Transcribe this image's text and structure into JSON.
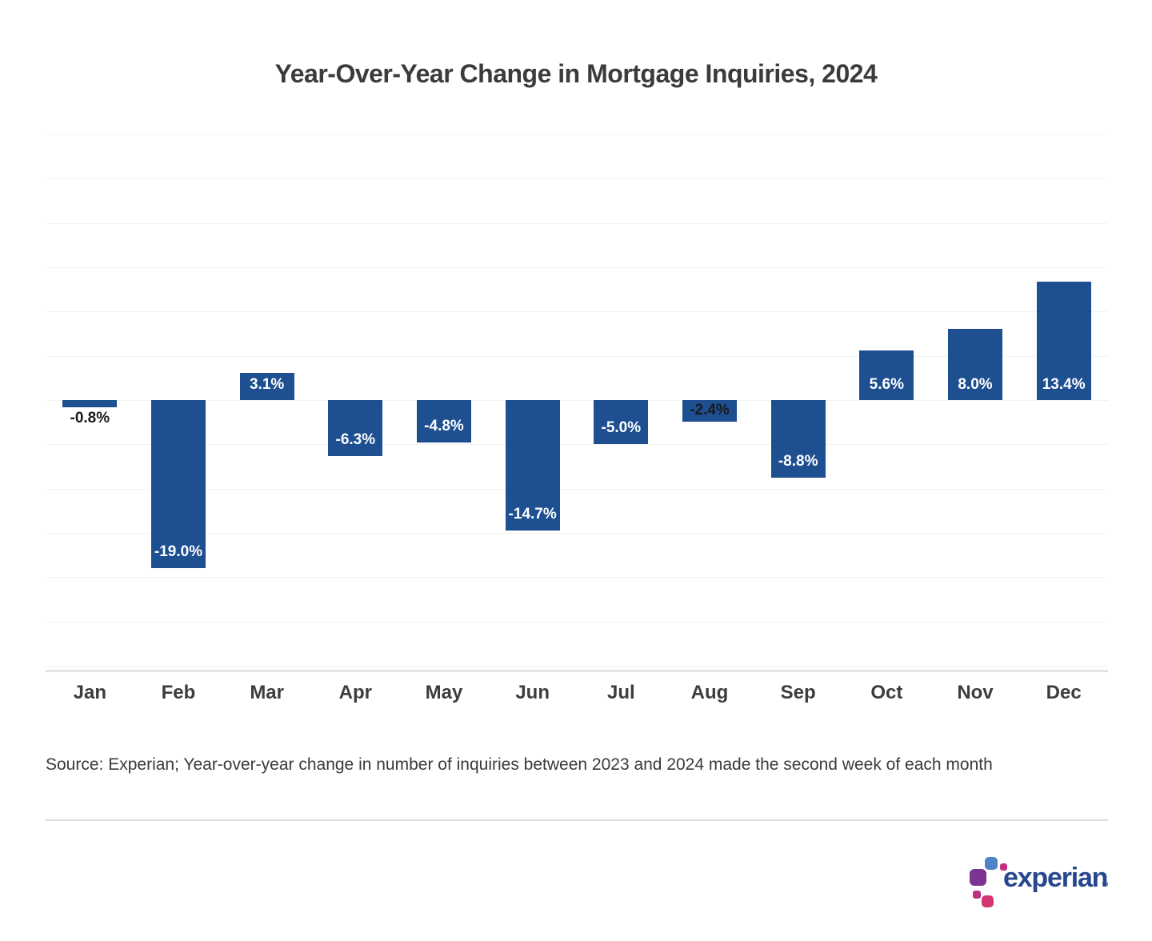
{
  "page": {
    "background": "#ffffff"
  },
  "source_note": "Source: Experian; Year-over-year change in number of inquiries between 2023 and 2024 made the second week of each month",
  "logo": {
    "text": "experian",
    "trademark": "™",
    "text_color": "#26478d",
    "squares": [
      {
        "name": "purple-square",
        "color": "#7a3590"
      },
      {
        "name": "blue-square",
        "color": "#4f83c8"
      },
      {
        "name": "magenta-small-square-1",
        "color": "#c13082"
      },
      {
        "name": "magenta-small-square-2",
        "color": "#bd2e7e"
      },
      {
        "name": "pink-square",
        "color": "#d23570"
      }
    ]
  },
  "chart_data": {
    "type": "bar",
    "title": "Year-Over-Year Change in Mortgage Inquiries, 2024",
    "xlabel": "",
    "ylabel": "",
    "categories": [
      "Jan",
      "Feb",
      "Mar",
      "Apr",
      "May",
      "Jun",
      "Jul",
      "Aug",
      "Sep",
      "Oct",
      "Nov",
      "Dec"
    ],
    "values": [
      -0.8,
      -19.0,
      3.1,
      -6.3,
      -4.8,
      -14.7,
      -5.0,
      -2.4,
      -8.8,
      5.6,
      8.0,
      13.4
    ],
    "labels": [
      "-0.8%",
      "-19.0%",
      "3.1%",
      "-6.3%",
      "-4.8%",
      "-14.7%",
      "-5.0%",
      "-2.4%",
      "-8.8%",
      "5.6%",
      "8.0%",
      "13.4%"
    ],
    "label_styles": [
      {
        "position": "below",
        "color": "#1a1a1a"
      },
      {
        "position": "in-end",
        "color": "#ffffff"
      },
      {
        "position": "in-base",
        "color": "#ffffff"
      },
      {
        "position": "in-end",
        "color": "#ffffff"
      },
      {
        "position": "in-end",
        "color": "#ffffff"
      },
      {
        "position": "in-end",
        "color": "#ffffff"
      },
      {
        "position": "in-end",
        "color": "#ffffff"
      },
      {
        "position": "in-end-tight",
        "color": "#1a1a1a"
      },
      {
        "position": "in-end",
        "color": "#ffffff"
      },
      {
        "position": "in-base",
        "color": "#ffffff"
      },
      {
        "position": "in-base",
        "color": "#ffffff"
      },
      {
        "position": "in-base",
        "color": "#ffffff"
      }
    ],
    "bar_color": "#1d4f91",
    "ylim": [
      -30,
      30
    ],
    "gridline_step": 5,
    "grid": true,
    "gridline_color": "#f3f3f3",
    "axis_line_color": "#e4e4e4",
    "legend": "none",
    "value_suffix": "%"
  }
}
